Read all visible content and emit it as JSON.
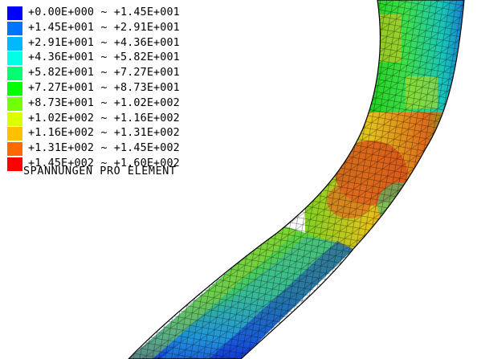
{
  "legend": {
    "entries": [
      {
        "range": "+0.00E+000 ~ +1.45E+001",
        "color": "#0000ff"
      },
      {
        "range": "+1.45E+001 ~ +2.91E+001",
        "color": "#0073ff"
      },
      {
        "range": "+2.91E+001 ~ +4.36E+001",
        "color": "#00b8ff"
      },
      {
        "range": "+4.36E+001 ~ +5.82E+001",
        "color": "#00ffe6"
      },
      {
        "range": "+5.82E+001 ~ +7.27E+001",
        "color": "#00ff73"
      },
      {
        "range": "+7.27E+001 ~ +8.73E+001",
        "color": "#00ff00"
      },
      {
        "range": "+8.73E+001 ~ +1.02E+002",
        "color": "#73ff00"
      },
      {
        "range": "+1.02E+002 ~ +1.16E+002",
        "color": "#d9ff00"
      },
      {
        "range": "+1.16E+002 ~ +1.31E+002",
        "color": "#ffc000"
      },
      {
        "range": "+1.31E+002 ~ +1.45E+002",
        "color": "#ff6a00"
      },
      {
        "range": "+1.45E+002 ~ +1.60E+002",
        "color": "#ff0000"
      }
    ],
    "title": "SPANNUNGEN PRO ELEMENT"
  }
}
